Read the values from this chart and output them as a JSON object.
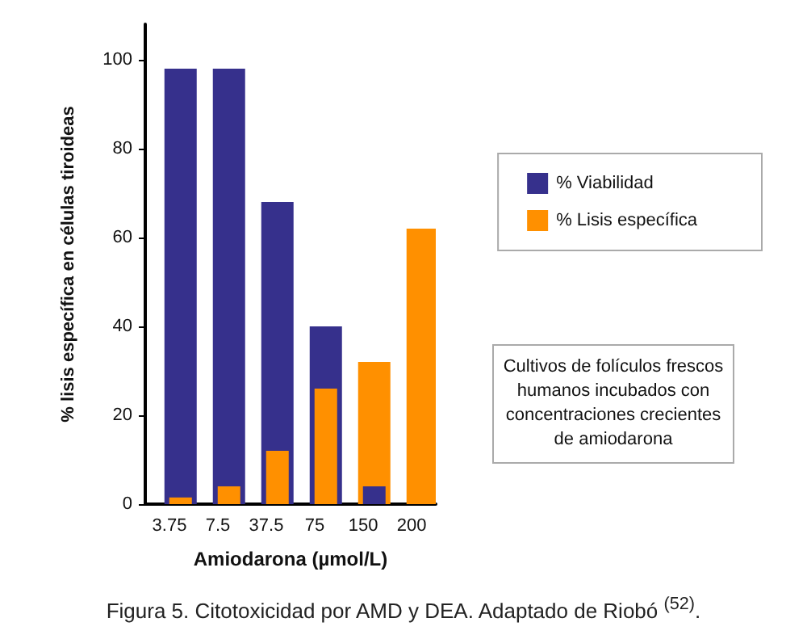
{
  "chart_data": {
    "type": "bar",
    "title": "Figura 5. Citotoxicidad por AMD y DEA. Adaptado de Riobó $^{(52)}$.",
    "xlabel": "Amiodarona (µmol/L)",
    "ylabel": "% lisis específica en células tiroideas",
    "categories": [
      "3.75",
      "7.5",
      "37.5",
      "75",
      "150",
      "200"
    ],
    "series": [
      {
        "name": "% Viabilidad",
        "color": "#36308c",
        "values": [
          98,
          98,
          68,
          40,
          4,
          0
        ]
      },
      {
        "name": "% Lisis específica",
        "color": "#ff9000",
        "values": [
          1.5,
          4,
          12,
          26,
          32,
          62
        ]
      }
    ],
    "ylim": [
      0,
      108
    ],
    "yticks": [
      0,
      20,
      40,
      60,
      80,
      100
    ],
    "grid": false,
    "legend": "right",
    "annotations": [
      "Cultivos de folículos frescos humanos incubados con concentraciones crecientes de amiodarona"
    ]
  }
}
